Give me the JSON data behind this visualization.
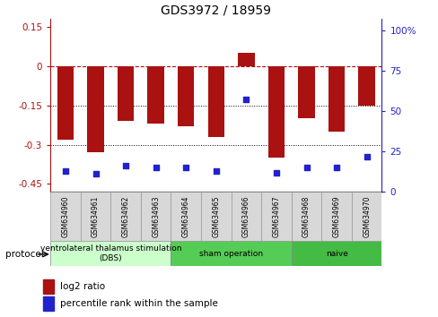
{
  "title": "GDS3972 / 18959",
  "samples": [
    "GSM634960",
    "GSM634961",
    "GSM634962",
    "GSM634963",
    "GSM634964",
    "GSM634965",
    "GSM634966",
    "GSM634967",
    "GSM634968",
    "GSM634969",
    "GSM634970"
  ],
  "log2_ratio": [
    -0.28,
    -0.33,
    -0.21,
    -0.22,
    -0.23,
    -0.27,
    0.05,
    -0.35,
    -0.2,
    -0.25,
    -0.15
  ],
  "percentile_rank": [
    13,
    11,
    16,
    15,
    15,
    13,
    57,
    12,
    15,
    15,
    22
  ],
  "bar_color": "#aa1111",
  "dot_color": "#2222cc",
  "ylim_left": [
    -0.48,
    0.18
  ],
  "ylim_right": [
    0,
    107
  ],
  "yticks_left": [
    0.15,
    0.0,
    -0.15,
    -0.3,
    -0.45
  ],
  "yticks_left_labels": [
    "0.15",
    "0",
    "-0.15",
    "-0.3",
    "-0.45"
  ],
  "yticks_right": [
    100,
    75,
    50,
    25,
    0
  ],
  "yticks_right_labels": [
    "100%",
    "75",
    "50",
    "25",
    "0"
  ],
  "dotted_lines": [
    -0.15,
    -0.3
  ],
  "group_defs": [
    {
      "start": 0,
      "end": 3,
      "label": "ventrolateral thalamus stimulation\n(DBS)",
      "color": "#ccffcc"
    },
    {
      "start": 4,
      "end": 7,
      "label": "sham operation",
      "color": "#55cc55"
    },
    {
      "start": 8,
      "end": 10,
      "label": "naive",
      "color": "#44bb44"
    }
  ],
  "legend_bar_label": "log2 ratio",
  "legend_dot_label": "percentile rank within the sample",
  "bar_width": 0.55,
  "title_fontsize": 10,
  "tick_fontsize": 7.5,
  "sample_fontsize": 5.5,
  "proto_fontsize": 6.5
}
